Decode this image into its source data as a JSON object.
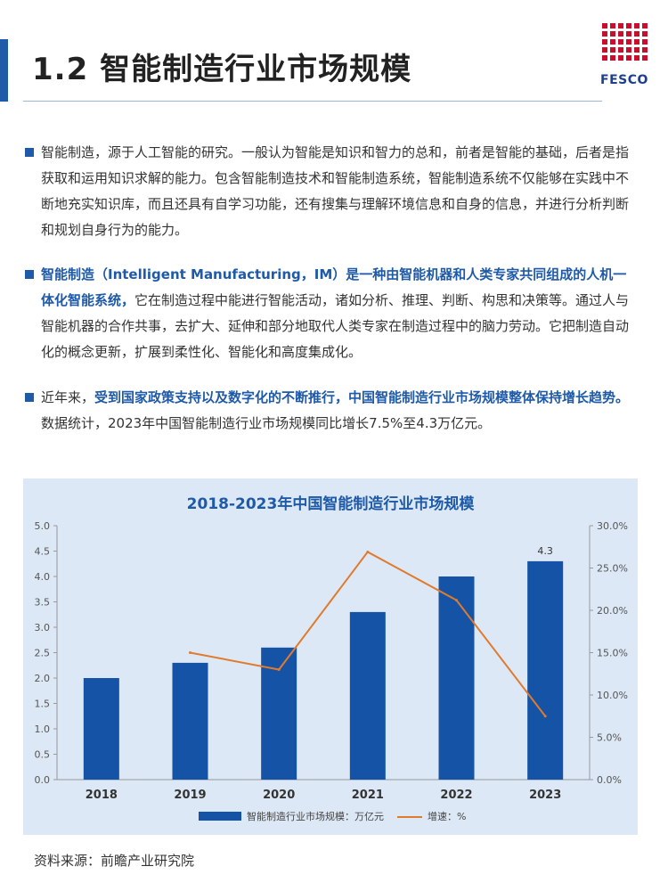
{
  "header": {
    "title": "1.2 智能制造行业市场规模",
    "logo_text": "FESCO"
  },
  "paragraphs": [
    {
      "segments": [
        {
          "text": "智能制造，源于人工智能的研究。一般认为智能是知识和智力的总和，前者是智能的基础，后者是指获取和运用知识求解的能力。包含智能制造技术和智能制造系统，智能制造系统不仅能够在实践中不断地充实知识库，而且还具有自学习功能，还有搜集与理解环境信息和自身的信息，并进行分析判断和规划自身行为的能力。",
          "bold": false
        }
      ]
    },
    {
      "segments": [
        {
          "text": "智能制造（Intelligent Manufacturing，IM）是一种由智能机器和人类专家共同组成的人机一体化智能系统，",
          "bold": true
        },
        {
          "text": "它在制造过程中能进行智能活动，诸如分析、推理、判断、构思和决策等。通过人与智能机器的合作共事，去扩大、延伸和部分地取代人类专家在制造过程中的脑力劳动。它把制造自动化的概念更新，扩展到柔性化、智能化和高度集成化。",
          "bold": false
        }
      ]
    },
    {
      "segments": [
        {
          "text": "近年来，",
          "bold": false
        },
        {
          "text": "受到国家政策支持以及数字化的不断推行，中国智能制造行业市场规模整体保持增长趋势。",
          "bold": true
        },
        {
          "text": "数据统计，2023年中国智能制造行业市场规模同比增长7.5%至4.3万亿元。",
          "bold": false
        }
      ]
    }
  ],
  "chart_data": {
    "type": "bar",
    "title": "2018-2023年中国智能制造行业市场规模",
    "categories": [
      "2018",
      "2019",
      "2020",
      "2021",
      "2022",
      "2023"
    ],
    "series": [
      {
        "name": "智能制造行业市场规模：万亿元",
        "type": "bar",
        "axis": "left",
        "values": [
          2.0,
          2.3,
          2.6,
          3.3,
          4.0,
          4.3
        ]
      },
      {
        "name": "增速：%",
        "type": "line",
        "axis": "right",
        "values": [
          null,
          15.0,
          13.0,
          26.9,
          21.2,
          7.5
        ]
      }
    ],
    "data_labels": [
      {
        "category": "2023",
        "text": "4.3"
      }
    ],
    "ylim": [
      0,
      5
    ],
    "yticks": [
      "0.0",
      "0.5",
      "1.0",
      "1.5",
      "2.0",
      "2.5",
      "3.0",
      "3.5",
      "4.0",
      "4.5",
      "5.0"
    ],
    "y2lim": [
      0,
      30
    ],
    "y2ticks": [
      "0.0%",
      "5.0%",
      "10.0%",
      "15.0%",
      "20.0%",
      "25.0%",
      "30.0%"
    ],
    "legend_position": "bottom",
    "colors": {
      "bar": "#1553a6",
      "line": "#e07b2e"
    }
  },
  "footer": {
    "source": "资料来源：前瞻产业研究院"
  }
}
